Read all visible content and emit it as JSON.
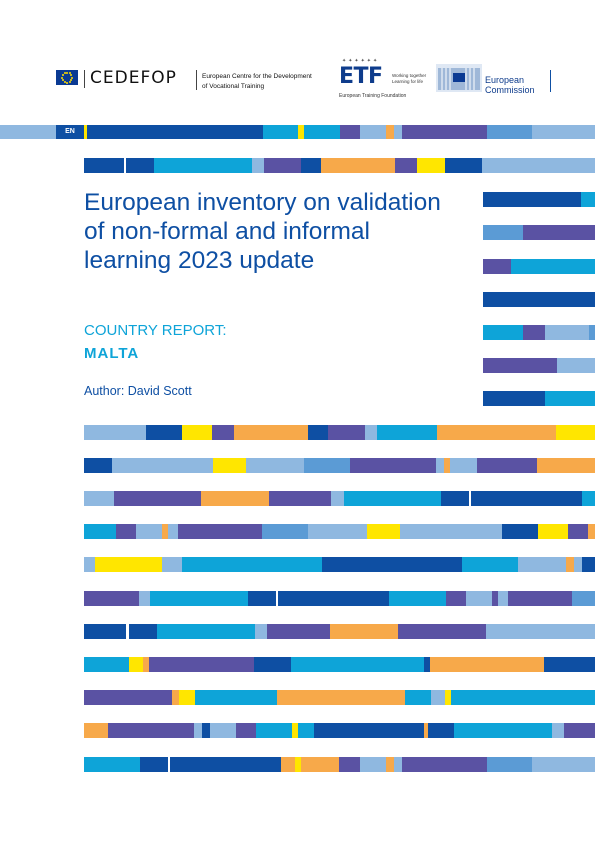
{
  "language_badge": "EN",
  "logos": {
    "cedefop_name": "CEDEFOP",
    "cedefop_subtitle_line1": "European Centre for the Development",
    "cedefop_subtitle_line2": "of Vocational Training",
    "etf_name": "ETF",
    "etf_tagline_line1": "Working together",
    "etf_tagline_line2": "Learning for life",
    "etf_full": "European Training Foundation",
    "ec_line1": "European",
    "ec_line2": "Commission"
  },
  "cover": {
    "title": "European inventory on validation of non-formal and informal learning 2023 update",
    "subtitle": "COUNTRY REPORT:",
    "country": "MALTA",
    "author": "Author: David Scott"
  },
  "colors": {
    "navy": "#0e4fa3",
    "cyan": "#0ea4d8",
    "light_blue": "#8fb8e0",
    "mid_blue": "#5b9bd5",
    "purple": "#5a52a3",
    "orange": "#f7a94a",
    "yellow": "#ffe600"
  }
}
